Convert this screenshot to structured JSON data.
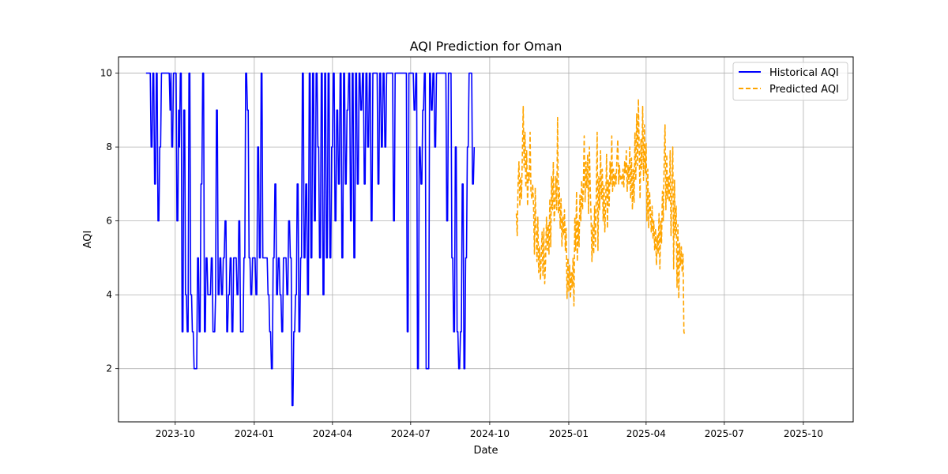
{
  "chart_data": {
    "type": "line",
    "title": "AQI Prediction for Oman",
    "xlabel": "Date",
    "ylabel": "AQI",
    "xlim": [
      "2023-07-27",
      "2025-11-28"
    ],
    "ylim": [
      0.56,
      10.44
    ],
    "x_ticks": [
      "2023-10-01",
      "2024-01-01",
      "2024-04-01",
      "2024-07-01",
      "2024-10-01",
      "2025-01-01",
      "2025-04-01",
      "2025-07-01",
      "2025-10-01"
    ],
    "x_tick_labels": [
      "2023-10",
      "2024-01",
      "2024-04",
      "2024-07",
      "2024-10",
      "2025-01",
      "2025-04",
      "2025-07",
      "2025-10"
    ],
    "y_ticks": [
      2,
      4,
      6,
      8,
      10
    ],
    "y_tick_labels": [
      "2",
      "4",
      "6",
      "8",
      "10"
    ],
    "grid": true,
    "legend_position": "top-right",
    "series": [
      {
        "name": "Historical AQI",
        "color": "#0000ff",
        "style": "solid",
        "x_start": "2023-08-28",
        "values": [
          10,
          10,
          10,
          10,
          10,
          10,
          8,
          8,
          10,
          10,
          7,
          7,
          10,
          10,
          6,
          6,
          8,
          8,
          10,
          10,
          10,
          10,
          10,
          10,
          10,
          10,
          10,
          10,
          9,
          10,
          8,
          8,
          10,
          10,
          10,
          10,
          6,
          6,
          9,
          8,
          10,
          10,
          3,
          3,
          9,
          9,
          4,
          4,
          3,
          3,
          10,
          10,
          4,
          4,
          3,
          3,
          2,
          2,
          2,
          2,
          5,
          5,
          3,
          3,
          7,
          7,
          10,
          10,
          3,
          3,
          5,
          5,
          4,
          4,
          4,
          4,
          5,
          5,
          3,
          3,
          3,
          4,
          9,
          9,
          4,
          4,
          5,
          5,
          4,
          4,
          5,
          5,
          6,
          6,
          3,
          3,
          4,
          4,
          5,
          5,
          3,
          3,
          5,
          5,
          5,
          5,
          4,
          4,
          6,
          6,
          3,
          3,
          3,
          3,
          5,
          5,
          10,
          10,
          9,
          9,
          5,
          5,
          4,
          4,
          5,
          5,
          5,
          5,
          4,
          4,
          8,
          8,
          5,
          5,
          10,
          10,
          5,
          5,
          5,
          5,
          5,
          5,
          4,
          4,
          3,
          3,
          2,
          2,
          5,
          5,
          7,
          7,
          4,
          4,
          5,
          5,
          4,
          4,
          3,
          3,
          5,
          5,
          5,
          5,
          4,
          4,
          6,
          6,
          5,
          5,
          1,
          1,
          3,
          3,
          4,
          4,
          7,
          7,
          3,
          3,
          5,
          5,
          10,
          10,
          5,
          5,
          7,
          7,
          4,
          4,
          10,
          10,
          5,
          5,
          10,
          10,
          6,
          6,
          10,
          10,
          8,
          8,
          5,
          5,
          10,
          10,
          4,
          4,
          10,
          10,
          5,
          5,
          10,
          10,
          5,
          5,
          8,
          8,
          10,
          10,
          6,
          6,
          9,
          9,
          7,
          7,
          10,
          10,
          5,
          5,
          10,
          10,
          7,
          7,
          9,
          9,
          10,
          10,
          6,
          6,
          10,
          10,
          5,
          5,
          10,
          10,
          7,
          7,
          10,
          10,
          9,
          9,
          10,
          10,
          7,
          7,
          10,
          10,
          8,
          8,
          10,
          10,
          6,
          6,
          10,
          10,
          10,
          10,
          10,
          10,
          7,
          7,
          10,
          10,
          8,
          8,
          10,
          10,
          8,
          8,
          10,
          10,
          10,
          10,
          10,
          10,
          10,
          10,
          6,
          6,
          10,
          10,
          10,
          10,
          10,
          10,
          10,
          10,
          10,
          10,
          10,
          10,
          10,
          10,
          3,
          3,
          10,
          10,
          10,
          10,
          10,
          10,
          9,
          9,
          10,
          10,
          2,
          2,
          8,
          8,
          7,
          7,
          9,
          9,
          10,
          10,
          2,
          2,
          2,
          2,
          10,
          10,
          9,
          9,
          10,
          10,
          8,
          8,
          10,
          10,
          10,
          10,
          10,
          10,
          10,
          10,
          10,
          10,
          10,
          10,
          6,
          6,
          10,
          10,
          10,
          10,
          5,
          5,
          3,
          3,
          8,
          8,
          3,
          3,
          2,
          2,
          3,
          3,
          7,
          7,
          2,
          2,
          5,
          5,
          8,
          8,
          10,
          10,
          10,
          10,
          7,
          7,
          8
        ]
      },
      {
        "name": "Predicted AQI",
        "color": "#ffa500",
        "style": "dashed",
        "x_start": "2024-11-01",
        "values": [
          6.2,
          5.6,
          7.0,
          7.6,
          6.4,
          7.2,
          6.6,
          7.8,
          9.1,
          7.4,
          8.4,
          6.9,
          7.9,
          6.4,
          7.3,
          7.1,
          8.4,
          6.8,
          6.6,
          7.0,
          6.4,
          5.1,
          6.9,
          5.7,
          4.9,
          6.1,
          4.6,
          5.3,
          4.4,
          5.1,
          5.7,
          4.5,
          5.8,
          4.3,
          4.9,
          6.1,
          5.2,
          5.9,
          5.1,
          6.6,
          5.3,
          7.2,
          6.3,
          7.6,
          6.0,
          6.4,
          7.2,
          6.3,
          8.8,
          6.2,
          6.9,
          5.8,
          6.6,
          5.3,
          6.1,
          5.6,
          6.3,
          5.2,
          5.8,
          3.9,
          5.0,
          4.1,
          4.8,
          3.9,
          4.6,
          4.2,
          5.0,
          3.7,
          6.1,
          5.2,
          6.8,
          4.9,
          6.0,
          5.3,
          6.7,
          6.0,
          7.1,
          6.3,
          7.0,
          8.3,
          6.5,
          7.6,
          6.9,
          7.8,
          6.2,
          8.0,
          6.8,
          6.1,
          4.9,
          5.9,
          5.1,
          6.4,
          5.3,
          6.7,
          8.4,
          5.2,
          7.2,
          6.3,
          7.9,
          6.6,
          7.4,
          6.0,
          7.0,
          5.7,
          6.5,
          7.8,
          5.8,
          7.1,
          6.4,
          7.6,
          7.0,
          8.3,
          6.8,
          7.4,
          6.9,
          7.3,
          7.0,
          7.7,
          8.2,
          7.0,
          7.5,
          7.1,
          7.2,
          7.0,
          7.4,
          6.9,
          7.6,
          7.3,
          7.9,
          6.8,
          7.5,
          7.0,
          8.0,
          6.6,
          7.7,
          6.3,
          7.4,
          6.5,
          8.4,
          7.1,
          8.9,
          7.5,
          9.3,
          7.8,
          6.6,
          8.2,
          7.4,
          9.1,
          7.1,
          8.6,
          7.3,
          8.1,
          6.0,
          7.4,
          5.8,
          6.8,
          6.3,
          5.7,
          6.4,
          5.5,
          6.0,
          5.2,
          5.8,
          4.8,
          5.6,
          5.1,
          6.2,
          4.7,
          6.0,
          5.4,
          6.8,
          6.0,
          7.6,
          8.6,
          6.3,
          7.8,
          6.6,
          7.2,
          6.5,
          7.9,
          5.6,
          6.9,
          8.0,
          4.7,
          7.1,
          5.6,
          6.4,
          4.2,
          5.9,
          3.9,
          5.4,
          4.8,
          5.3,
          4.6,
          5.1,
          3.0,
          2.9
        ]
      }
    ]
  }
}
